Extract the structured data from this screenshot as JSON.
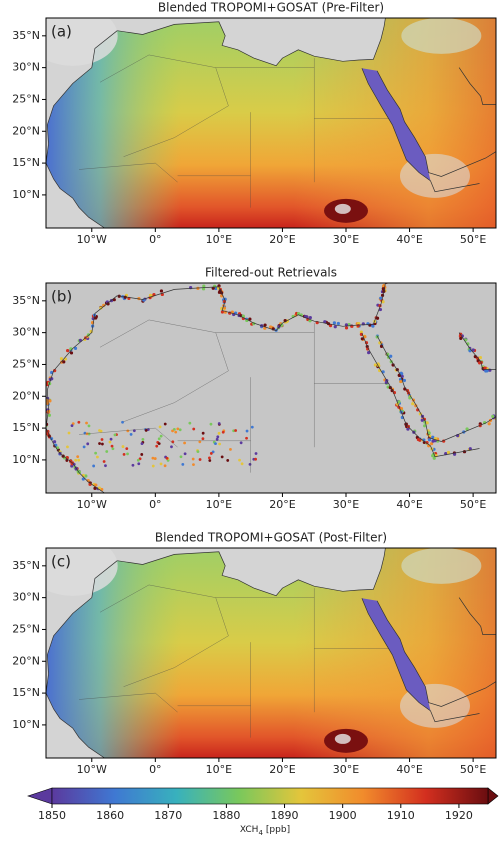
{
  "panels": [
    {
      "label": "(a)",
      "title": "Blended TROPOMI+GOSAT (Pre-Filter)"
    },
    {
      "label": "(b)",
      "title": "Filtered-out Retrievals"
    },
    {
      "label": "(c)",
      "title": "Blended TROPOMI+GOSAT (Post-Filter)"
    }
  ],
  "map": {
    "lonlim": [
      -17.2,
      53.6
    ],
    "latlim": [
      4.8,
      37.8
    ],
    "xticks": [
      {
        "value": -10,
        "label": "10°W"
      },
      {
        "value": 0,
        "label": "0°"
      },
      {
        "value": 10,
        "label": "10°E"
      },
      {
        "value": 20,
        "label": "20°E"
      },
      {
        "value": 30,
        "label": "30°E"
      },
      {
        "value": 40,
        "label": "40°E"
      },
      {
        "value": 50,
        "label": "50°E"
      }
    ],
    "yticks": [
      {
        "value": 10,
        "label": "10°N"
      },
      {
        "value": 15,
        "label": "15°N"
      },
      {
        "value": 20,
        "label": "20°N"
      },
      {
        "value": 25,
        "label": "25°N"
      },
      {
        "value": 30,
        "label": "30°N"
      },
      {
        "value": 35,
        "label": "35°N"
      }
    ]
  },
  "colorbar": {
    "lim": [
      1850,
      1925
    ],
    "ticks": [
      1850,
      1860,
      1870,
      1880,
      1890,
      1900,
      1910,
      1920
    ],
    "colors": [
      "#5b3a9e",
      "#3f78d2",
      "#38b1bd",
      "#79c85c",
      "#e4c53b",
      "#f18b2c",
      "#d32f1f",
      "#6a0d10"
    ],
    "label": {
      "main": "XCH",
      "sub": "4",
      "unit": "[ppb]"
    }
  }
}
